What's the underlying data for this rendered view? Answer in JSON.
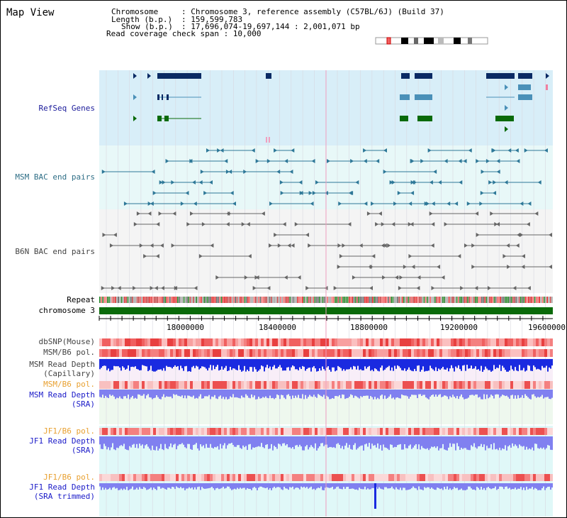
{
  "title": "Map View",
  "header": {
    "chromosome_key": "Chromosome",
    "chromosome_val": ": Chromosome 3, reference assembly (C57BL/6J) (Build 37)",
    "length_key": "Length (b.p.)",
    "length_val": ": 159,599,783",
    "show_key": "Show (b.p.)",
    "show_val": ": 17,696,074-19,697,144 : 2,001,071 bp",
    "coverage_line": "Read coverage check span : 10,000"
  },
  "tracks": {
    "refseq": "RefSeq Genes",
    "msm_bac": "MSM BAC end pairs",
    "b6n_bac": "B6N BAC end pairs",
    "repeat": "Repeat",
    "chromosome": "chromosome 3",
    "dbsnp": "dbSNP(Mouse)",
    "msm_b6_pol_1": "MSM/B6 pol.",
    "msm_depth_cap_1": "MSM Read Depth",
    "msm_depth_cap_2": "(Capillary)",
    "msm_b6_pol_2": "MSM/B6 pol.",
    "msm_depth_sra_1": "MSM Read Depth",
    "msm_depth_sra_2": "(SRA)",
    "jf1_pol_1": "JF1/B6 pol.",
    "jf1_depth_sra_1": "JF1 Read Depth",
    "jf1_depth_sra_2": "(SRA)",
    "jf1_pol_2": "JF1/B6 pol.",
    "jf1_depth_trim_1": "JF1 Read Depth",
    "jf1_depth_trim_2": "(SRA trimmed)"
  },
  "axis": {
    "ticks": [
      "18000000",
      "18400000",
      "18800000",
      "19200000",
      "19600000"
    ]
  },
  "colors": {
    "refseq_bg": "#d8eef8",
    "msm_bac_bg": "#e8f8f8",
    "b6n_bac_bg": "#f4f4f4",
    "gene_navy": "#0a2a64",
    "gene_light": "#4a90b8",
    "gene_green": "#0a6a0a",
    "chromosome_bar": "#0a6a0a",
    "depth_blue": "#1a2ae0",
    "depth_light": "#8080f0",
    "pol_red": "#f04040"
  }
}
